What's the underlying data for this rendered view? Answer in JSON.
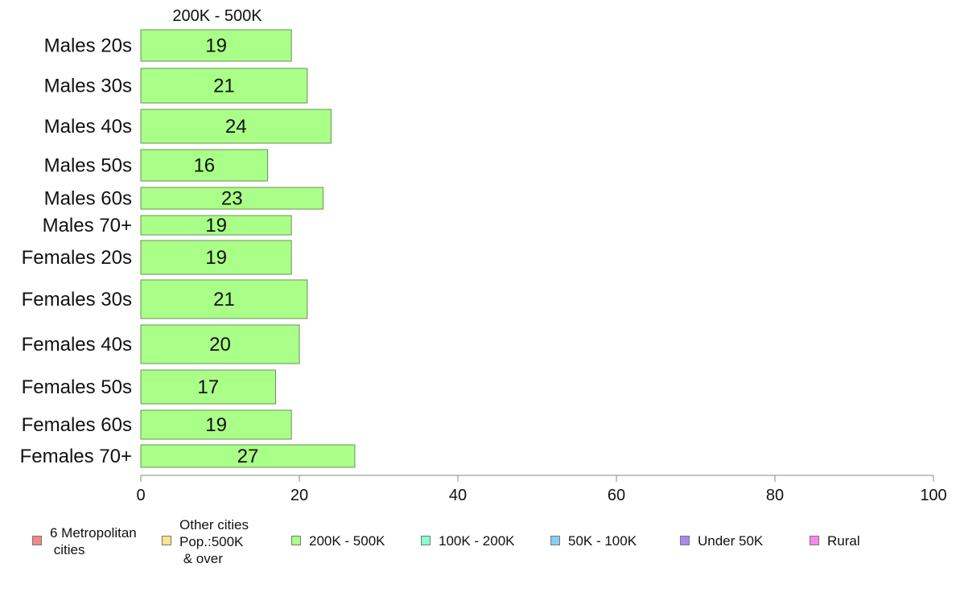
{
  "chart_data": {
    "type": "bar",
    "orientation": "horizontal",
    "title": "200K - 500K",
    "categories": [
      "Males 20s",
      "Males 30s",
      "Males 40s",
      "Males 50s",
      "Males 60s",
      "Males 70+",
      "Females 20s",
      "Females 30s",
      "Females 40s",
      "Females 50s",
      "Females 60s",
      "Females 70+"
    ],
    "series": [
      {
        "name": "200K - 500K",
        "values": [
          19,
          21,
          24,
          16,
          23,
          19,
          19,
          21,
          20,
          17,
          19,
          27
        ],
        "color": "#aaff88"
      }
    ],
    "xlim": [
      0,
      100
    ],
    "xticks": [
      0,
      20,
      40,
      60,
      80,
      100
    ],
    "grid": false,
    "legend_position": "bottom",
    "legend": [
      {
        "label": "6 Metropolitan\n cities",
        "color": "#f08888"
      },
      {
        "label": "Other cities\nPop.:500K\n & over",
        "color": "#fde38a"
      },
      {
        "label": "200K - 500K",
        "color": "#aaff88"
      },
      {
        "label": "100K - 200K",
        "color": "#88ffcc"
      },
      {
        "label": "50K - 100K",
        "color": "#88ccf8"
      },
      {
        "label": "Under 50K",
        "color": "#aa88ee"
      },
      {
        "label": "Rural",
        "color": "#f888ee"
      }
    ]
  }
}
